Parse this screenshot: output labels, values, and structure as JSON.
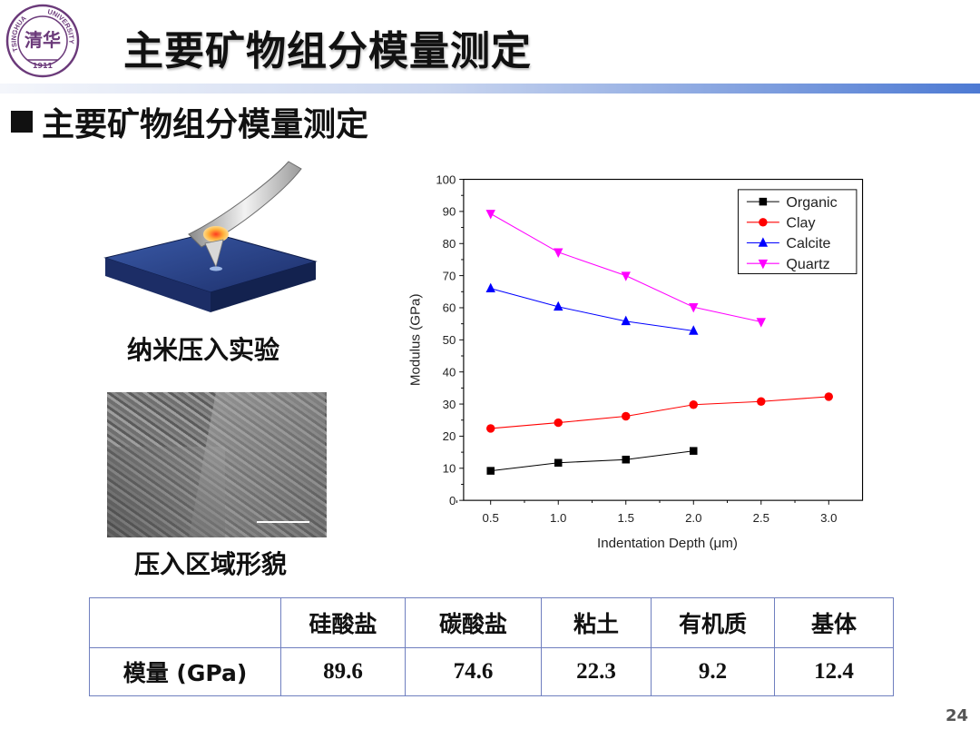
{
  "header": {
    "title": "主要矿物组分模量测定",
    "logo": {
      "arc_left": "TSINGHUA",
      "arc_right": "UNIVERSITY",
      "year": "1911",
      "seal": "清华"
    }
  },
  "section": {
    "heading": "主要矿物组分模量测定"
  },
  "figures": {
    "caption_nano": "纳米压入实验",
    "caption_sem": "压入区域形貌"
  },
  "chart_data": {
    "type": "line",
    "xlabel": "Indentation Depth (μm)",
    "ylabel": "Modulus (GPa)",
    "xlim": [
      0.3,
      3.25
    ],
    "ylim": [
      0,
      100
    ],
    "x_ticks": [
      "0.5",
      "1.0",
      "1.5",
      "2.0",
      "2.5",
      "3.0"
    ],
    "y_ticks": [
      "0",
      "10",
      "20",
      "30",
      "40",
      "50",
      "60",
      "70",
      "80",
      "90",
      "100"
    ],
    "legend_position": "top-right",
    "grid": false,
    "series": [
      {
        "name": "Organic",
        "color": "#000000",
        "marker": "square",
        "x": [
          0.5,
          1.0,
          1.5,
          2.0
        ],
        "values": [
          9.2,
          11.7,
          12.7,
          15.4
        ]
      },
      {
        "name": "Clay",
        "color": "#ff0000",
        "marker": "circle",
        "x": [
          0.5,
          1.0,
          1.5,
          2.0,
          2.5,
          3.0
        ],
        "values": [
          22.4,
          24.2,
          26.2,
          29.8,
          30.8,
          32.3
        ]
      },
      {
        "name": "Calcite",
        "color": "#0000ff",
        "marker": "triangle-up",
        "x": [
          0.5,
          1.0,
          1.5,
          2.0
        ],
        "values": [
          66.0,
          60.3,
          55.8,
          52.8
        ]
      },
      {
        "name": "Quartz",
        "color": "#ff00ff",
        "marker": "triangle-down",
        "x": [
          0.5,
          1.0,
          1.5,
          2.0,
          2.5
        ],
        "values": [
          89.3,
          77.3,
          70.0,
          60.2,
          55.6
        ]
      }
    ]
  },
  "table": {
    "headers": [
      "",
      "硅酸盐",
      "碳酸盐",
      "粘土",
      "有机质",
      "基体"
    ],
    "row_label": "模量 (GPa)",
    "values": [
      "89.6",
      "74.6",
      "22.3",
      "9.2",
      "12.4"
    ]
  },
  "footer": {
    "page_number": "24"
  }
}
